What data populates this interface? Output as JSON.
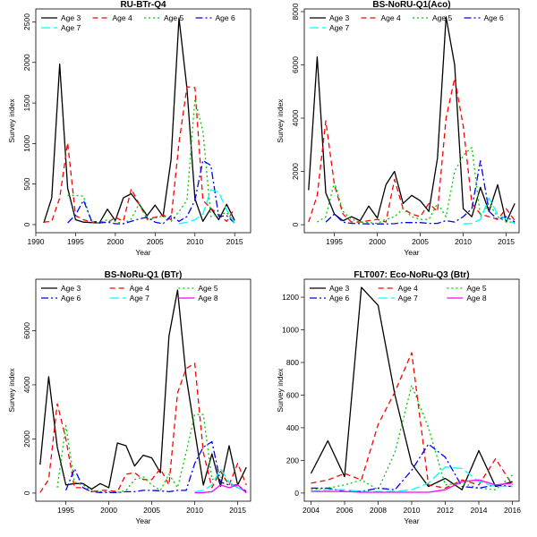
{
  "figure": {
    "background": "#ffffff"
  },
  "series_colors": {
    "Age 3": "#000000",
    "Age 4": "#ff0000",
    "Age 5": "#00cd00",
    "Age 6": "#0000ff",
    "Age 7": "#00ffff",
    "Age 8": "#ff00ff"
  },
  "series_dash": {
    "Age 3": "",
    "Age 4": "6,4",
    "Age 5": "2,3",
    "Age 6": "8,3,2,3",
    "Age 7": "10,4",
    "Age 8": ""
  },
  "chart_data": [
    {
      "type": "line",
      "title": "RU-BTr-Q4",
      "xlabel": "Year",
      "ylabel": "Survey index",
      "xlim": [
        1990,
        2017
      ],
      "ylim": [
        -100,
        2660
      ],
      "xticks": [
        1990,
        1995,
        2000,
        2005,
        2010,
        2015
      ],
      "yticks": [
        0,
        500,
        1000,
        1500,
        2000,
        2500
      ],
      "legend": {
        "position": "top",
        "columns": 4
      },
      "x": [
        1991,
        1992,
        1993,
        1994,
        1995,
        1996,
        1997,
        1998,
        1999,
        2000,
        2001,
        2002,
        2003,
        2004,
        2005,
        2006,
        2007,
        2008,
        2009,
        2010,
        2011,
        2012,
        2013,
        2014,
        2015
      ],
      "series": [
        {
          "name": "Age 3",
          "values": [
            20,
            330,
            1980,
            450,
            60,
            30,
            25,
            20,
            190,
            50,
            330,
            380,
            250,
            110,
            240,
            100,
            800,
            2550,
            1680,
            320,
            40,
            200,
            60,
            250,
            50
          ]
        },
        {
          "name": "Age 4",
          "values": [
            30,
            40,
            330,
            1010,
            110,
            60,
            30,
            40,
            20,
            90,
            40,
            440,
            250,
            70,
            90,
            120,
            60,
            1010,
            1700,
            1690,
            300,
            200,
            120,
            40,
            200
          ]
        },
        {
          "name": "Age 5",
          "values": [
            null,
            null,
            null,
            360,
            360,
            350,
            20,
            20,
            60,
            40,
            10,
            70,
            260,
            60,
            80,
            110,
            40,
            160,
            300,
            1550,
            1150,
            100,
            120,
            150,
            10
          ]
        },
        {
          "name": "Age 6",
          "values": [
            null,
            null,
            null,
            20,
            120,
            300,
            50,
            20,
            30,
            10,
            10,
            40,
            70,
            90,
            30,
            10,
            110,
            40,
            100,
            300,
            790,
            730,
            100,
            110,
            20
          ]
        },
        {
          "name": "Age 7",
          "values": [
            null,
            null,
            null,
            null,
            null,
            null,
            null,
            null,
            null,
            null,
            null,
            null,
            null,
            null,
            null,
            null,
            null,
            10,
            30,
            60,
            130,
            430,
            400,
            180,
            20
          ]
        }
      ]
    },
    {
      "type": "line",
      "title": "BS-NoRU-Q1(Aco)",
      "xlabel": "Year",
      "ylabel": "Survey index",
      "xlim": [
        1991.5,
        2016.5
      ],
      "ylim": [
        -300,
        8100
      ],
      "xticks": [
        1995,
        2000,
        2005,
        2010,
        2015
      ],
      "yticks": [
        0,
        2000,
        4000,
        6000,
        8000
      ],
      "legend": {
        "position": "top",
        "columns": 4
      },
      "x": [
        1992,
        1993,
        1994,
        1995,
        1996,
        1997,
        1998,
        1999,
        2000,
        2001,
        2002,
        2003,
        2004,
        2005,
        2006,
        2007,
        2008,
        2009,
        2010,
        2011,
        2012,
        2013,
        2014,
        2015,
        2016
      ],
      "series": [
        {
          "name": "Age 3",
          "values": [
            1300,
            6300,
            1200,
            400,
            150,
            300,
            150,
            700,
            250,
            1500,
            2000,
            800,
            1100,
            900,
            500,
            2500,
            7800,
            6000,
            600,
            300,
            1400,
            500,
            1500,
            100,
            800
          ]
        },
        {
          "name": "Age 4",
          "values": [
            100,
            1100,
            3900,
            1500,
            400,
            100,
            100,
            150,
            200,
            100,
            1700,
            600,
            400,
            300,
            800,
            500,
            4000,
            5500,
            3700,
            800,
            400,
            300,
            200,
            600,
            150
          ]
        },
        {
          "name": "Age 5",
          "values": [
            null,
            100,
            300,
            1600,
            500,
            200,
            100,
            80,
            50,
            200,
            300,
            600,
            300,
            200,
            200,
            800,
            300,
            2000,
            2600,
            2900,
            300,
            800,
            300,
            100,
            100
          ]
        },
        {
          "name": "Age 6",
          "values": [
            null,
            null,
            100,
            400,
            100,
            50,
            40,
            30,
            30,
            30,
            40,
            80,
            80,
            80,
            50,
            50,
            150,
            100,
            300,
            600,
            2400,
            500,
            200,
            300,
            100
          ]
        },
        {
          "name": "Age 7",
          "values": [
            null,
            null,
            null,
            null,
            null,
            null,
            null,
            null,
            null,
            null,
            null,
            null,
            null,
            null,
            null,
            null,
            null,
            null,
            30,
            50,
            200,
            1000,
            400,
            200,
            50
          ]
        }
      ]
    },
    {
      "type": "line",
      "title": "BS-NoRu-Q1 (BTr)",
      "xlabel": "Year",
      "ylabel": "Survey index",
      "xlim": [
        1991.5,
        2016.5
      ],
      "ylim": [
        -300,
        7900
      ],
      "xticks": [
        1995,
        2000,
        2005,
        2010,
        2015
      ],
      "yticks": [
        0,
        2000,
        4000,
        6000
      ],
      "legend": {
        "position": "top",
        "columns": 3
      },
      "x": [
        1992,
        1993,
        1994,
        1995,
        1996,
        1997,
        1998,
        1999,
        2000,
        2001,
        2002,
        2003,
        2004,
        2005,
        2006,
        2007,
        2008,
        2009,
        2010,
        2011,
        2012,
        2013,
        2014,
        2015,
        2016
      ],
      "series": [
        {
          "name": "Age 3",
          "values": [
            1050,
            4300,
            1700,
            300,
            350,
            350,
            150,
            350,
            200,
            1850,
            1750,
            1000,
            1400,
            1300,
            750,
            5800,
            7500,
            4300,
            2300,
            300,
            1450,
            250,
            1750,
            300,
            950
          ]
        },
        {
          "name": "Age 4",
          "values": [
            20,
            500,
            3300,
            2000,
            200,
            200,
            50,
            100,
            100,
            50,
            700,
            750,
            500,
            500,
            900,
            300,
            3700,
            4600,
            4800,
            1500,
            200,
            800,
            300,
            1100,
            300
          ]
        },
        {
          "name": "Age 5",
          "values": [
            null,
            null,
            200,
            2500,
            400,
            300,
            100,
            50,
            50,
            20,
            100,
            500,
            600,
            300,
            100,
            700,
            200,
            1500,
            2900,
            2900,
            500,
            600,
            400,
            200,
            100
          ]
        },
        {
          "name": "Age 6",
          "values": [
            null,
            null,
            null,
            100,
            900,
            200,
            50,
            20,
            20,
            20,
            50,
            50,
            100,
            100,
            80,
            50,
            100,
            100,
            1100,
            1700,
            1900,
            400,
            300,
            300,
            50
          ]
        },
        {
          "name": "Age 7",
          "values": [
            null,
            null,
            null,
            null,
            null,
            null,
            null,
            null,
            null,
            null,
            null,
            null,
            null,
            null,
            null,
            null,
            null,
            null,
            50,
            100,
            300,
            900,
            400,
            200,
            50
          ]
        },
        {
          "name": "Age 8",
          "values": [
            null,
            null,
            null,
            null,
            null,
            null,
            null,
            null,
            null,
            null,
            null,
            null,
            null,
            null,
            null,
            null,
            null,
            null,
            10,
            20,
            50,
            300,
            200,
            300,
            10
          ]
        }
      ]
    },
    {
      "type": "line",
      "title": "FLT007: Eco-NoRu-Q3 (Btr)",
      "xlabel": "Year",
      "ylabel": "Survey index",
      "xlim": [
        2003.6,
        2016.4
      ],
      "ylim": [
        -50,
        1310
      ],
      "xticks": [
        2004,
        2006,
        2008,
        2010,
        2012,
        2014,
        2016
      ],
      "yticks": [
        0,
        200,
        400,
        600,
        800,
        1000,
        1200
      ],
      "legend": {
        "position": "top",
        "columns": 3
      },
      "x": [
        2004,
        2005,
        2006,
        2007,
        2008,
        2009,
        2010,
        2011,
        2012,
        2013,
        2014,
        2015,
        2016
      ],
      "series": [
        {
          "name": "Age 3",
          "values": [
            120,
            320,
            100,
            1260,
            1150,
            600,
            180,
            40,
            90,
            20,
            260,
            40,
            70
          ]
        },
        {
          "name": "Age 4",
          "values": [
            60,
            80,
            120,
            80,
            420,
            620,
            860,
            50,
            30,
            80,
            50,
            210,
            50
          ]
        },
        {
          "name": "Age 5",
          "values": [
            20,
            30,
            50,
            80,
            20,
            250,
            660,
            400,
            50,
            60,
            30,
            20,
            110
          ]
        },
        {
          "name": "Age 6",
          "values": [
            30,
            30,
            10,
            10,
            30,
            20,
            140,
            300,
            220,
            40,
            30,
            50,
            40
          ]
        },
        {
          "name": "Age 7",
          "values": [
            10,
            20,
            20,
            10,
            10,
            10,
            20,
            60,
            160,
            150,
            70,
            40,
            40
          ]
        },
        {
          "name": "Age 8",
          "values": [
            10,
            10,
            10,
            5,
            5,
            5,
            5,
            5,
            20,
            70,
            80,
            50,
            60
          ]
        }
      ]
    }
  ]
}
